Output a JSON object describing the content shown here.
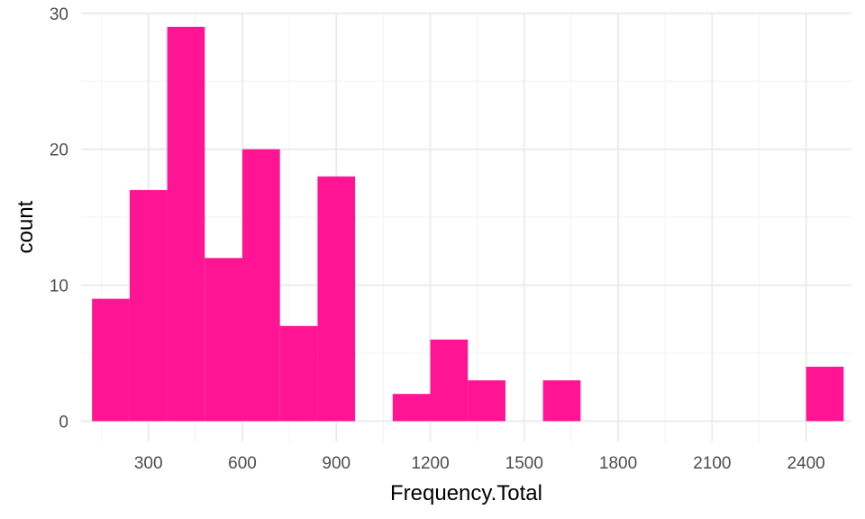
{
  "chart_data": {
    "type": "bar",
    "subtype": "histogram",
    "xlabel": "Frequency.Total",
    "ylabel": "count",
    "bar_color": "#ff1493",
    "background": "#ffffff",
    "grid": true,
    "xlim": [
      85,
      2545
    ],
    "ylim": [
      -1.5,
      30.05
    ],
    "x_ticks": [
      300,
      600,
      900,
      1200,
      1500,
      1800,
      2100,
      2400
    ],
    "y_ticks": [
      0,
      10,
      20,
      30
    ],
    "bins": [
      {
        "x0": 120,
        "x1": 240,
        "count": 9
      },
      {
        "x0": 240,
        "x1": 360,
        "count": 17
      },
      {
        "x0": 360,
        "x1": 480,
        "count": 29
      },
      {
        "x0": 480,
        "x1": 600,
        "count": 12
      },
      {
        "x0": 600,
        "x1": 720,
        "count": 20
      },
      {
        "x0": 720,
        "x1": 840,
        "count": 7
      },
      {
        "x0": 840,
        "x1": 960,
        "count": 18
      },
      {
        "x0": 960,
        "x1": 1080,
        "count": 0
      },
      {
        "x0": 1080,
        "x1": 1200,
        "count": 2
      },
      {
        "x0": 1200,
        "x1": 1320,
        "count": 6
      },
      {
        "x0": 1320,
        "x1": 1440,
        "count": 3
      },
      {
        "x0": 1440,
        "x1": 1560,
        "count": 0
      },
      {
        "x0": 1560,
        "x1": 1680,
        "count": 3
      },
      {
        "x0": 1680,
        "x1": 1800,
        "count": 0
      },
      {
        "x0": 1800,
        "x1": 1920,
        "count": 0
      },
      {
        "x0": 1920,
        "x1": 2040,
        "count": 0
      },
      {
        "x0": 2040,
        "x1": 2160,
        "count": 0
      },
      {
        "x0": 2160,
        "x1": 2280,
        "count": 0
      },
      {
        "x0": 2280,
        "x1": 2400,
        "count": 0
      },
      {
        "x0": 2400,
        "x1": 2520,
        "count": 4
      }
    ]
  }
}
